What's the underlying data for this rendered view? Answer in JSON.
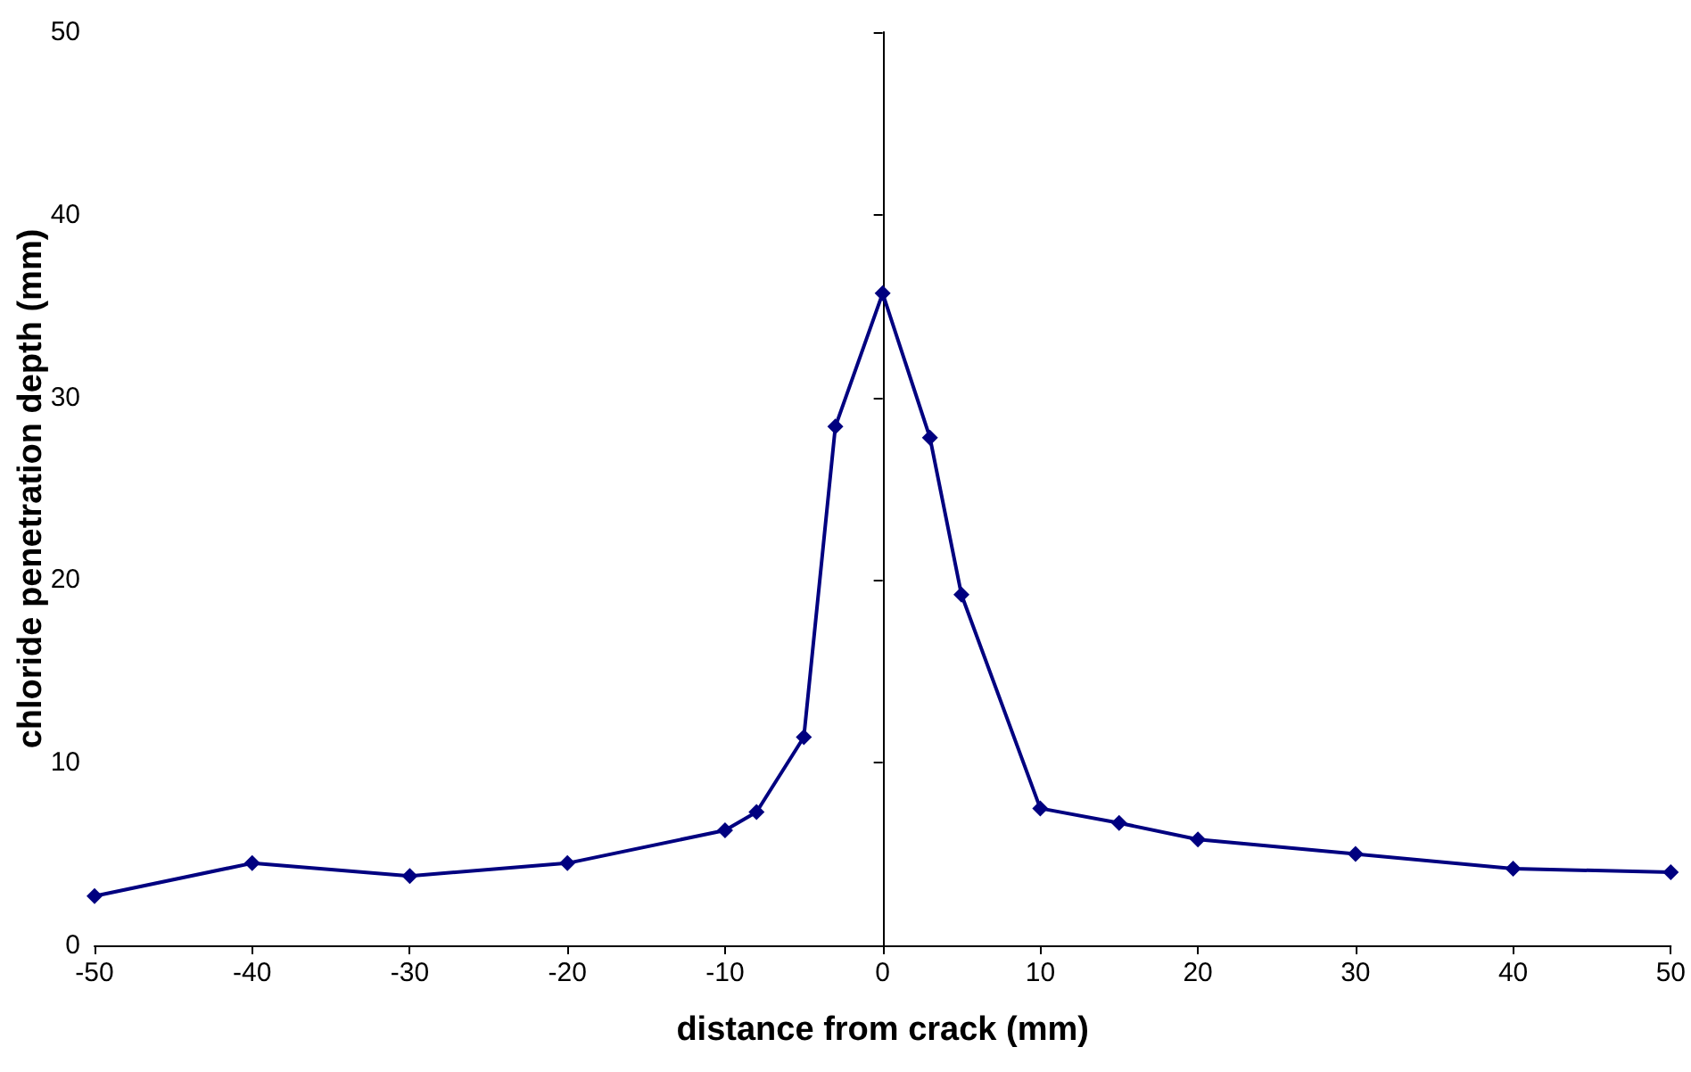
{
  "chart_data": {
    "type": "line",
    "xlabel": "distance from crack (mm)",
    "ylabel": "chloride penetration depth (mm)",
    "x": [
      -50,
      -40,
      -30,
      -20,
      -10,
      -8,
      -5,
      -3,
      0,
      3,
      5,
      10,
      15,
      20,
      30,
      40,
      50
    ],
    "series": [
      {
        "color": "#000080",
        "values": [
          2.7,
          4.5,
          3.8,
          4.5,
          6.3,
          7.3,
          11.4,
          28.4,
          35.7,
          27.8,
          19.2,
          7.5,
          6.7,
          5.8,
          5.0,
          4.2,
          4.0
        ]
      }
    ],
    "xlim": [
      -50,
      50
    ],
    "xticks": [
      -50,
      -40,
      -30,
      -20,
      -10,
      0,
      10,
      20,
      30,
      40,
      50
    ],
    "ylim": [
      0,
      50
    ],
    "yticks": [
      0,
      10,
      20,
      30,
      40,
      50
    ],
    "marker": "diamond",
    "line_style": "solid"
  }
}
